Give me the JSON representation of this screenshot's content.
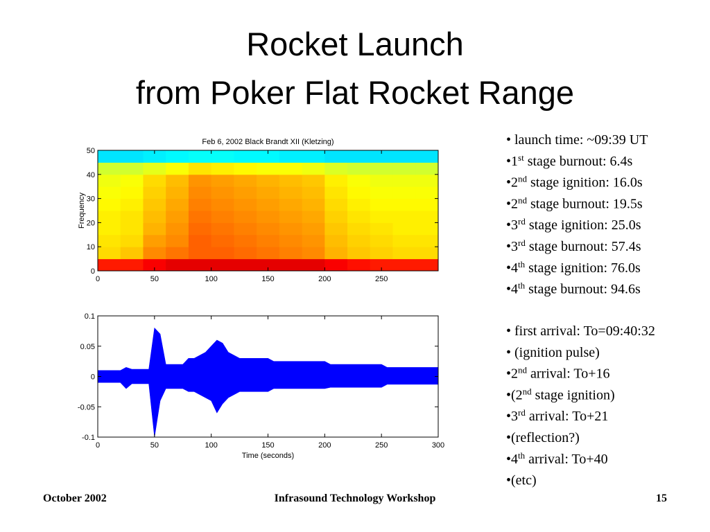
{
  "title_lines": [
    "Rocket Launch",
    "from Poker Flat Rocket Range"
  ],
  "bullets_1": [
    [
      "• launch time: ~09:39 UT"
    ],
    [
      "•1",
      "st",
      " stage burnout: 6.4s"
    ],
    [
      "•2",
      "nd",
      " stage ignition: 16.0s"
    ],
    [
      "•2",
      "nd",
      " stage burnout: 19.5s"
    ],
    [
      "•3",
      "rd",
      " stage ignition: 25.0s"
    ],
    [
      "•3",
      "rd",
      " stage burnout: 57.4s"
    ],
    [
      "•4",
      "th",
      " stage ignition: 76.0s"
    ],
    [
      "•4",
      "th",
      " stage burnout: 94.6s"
    ]
  ],
  "bullets_2": [
    [
      "• first arrival: To=09:40:32"
    ],
    [
      "• (ignition pulse)"
    ],
    [
      "•2",
      "nd",
      " arrival: To+16"
    ],
    [
      "•(2",
      "nd",
      " stage ignition)"
    ],
    [
      "•3",
      "rd",
      " arrival: To+21"
    ],
    [
      "•(reflection?)"
    ],
    [
      "•4",
      "th",
      " arrival: To+40"
    ],
    [
      "•(etc)"
    ]
  ],
  "footer": {
    "left": "October 2002",
    "center": "Infrasound Technology Workshop",
    "right": "15"
  },
  "chart_data": [
    {
      "type": "heatmap",
      "title": "Feb 6, 2002 Black Brandt XII (Kletzing)",
      "y_label": "Frequency",
      "xlim": [
        0,
        300
      ],
      "xticks": [
        0,
        50,
        100,
        150,
        200,
        250
      ],
      "ylim": [
        0,
        50
      ],
      "yticks": [
        0,
        10,
        20,
        30,
        40,
        50
      ],
      "x_bins": [
        0,
        20,
        40,
        60,
        80,
        100,
        120,
        140,
        160,
        180,
        200,
        220,
        240,
        260,
        280,
        300
      ],
      "y_bins": [
        0,
        5,
        10,
        15,
        20,
        25,
        30,
        35,
        40,
        45,
        50
      ],
      "z": [
        [
          0.85,
          0.85,
          0.88,
          0.9,
          0.9,
          0.9,
          0.9,
          0.9,
          0.9,
          0.9,
          0.88,
          0.86,
          0.85,
          0.85,
          0.85
        ],
        [
          0.66,
          0.68,
          0.74,
          0.76,
          0.78,
          0.78,
          0.77,
          0.76,
          0.75,
          0.74,
          0.7,
          0.68,
          0.67,
          0.66,
          0.66
        ],
        [
          0.65,
          0.66,
          0.72,
          0.74,
          0.78,
          0.77,
          0.76,
          0.75,
          0.74,
          0.73,
          0.69,
          0.67,
          0.66,
          0.65,
          0.65
        ],
        [
          0.64,
          0.65,
          0.7,
          0.73,
          0.77,
          0.76,
          0.75,
          0.74,
          0.73,
          0.72,
          0.68,
          0.66,
          0.65,
          0.64,
          0.64
        ],
        [
          0.64,
          0.65,
          0.69,
          0.72,
          0.76,
          0.75,
          0.74,
          0.73,
          0.72,
          0.71,
          0.67,
          0.65,
          0.64,
          0.64,
          0.64
        ],
        [
          0.63,
          0.64,
          0.68,
          0.71,
          0.75,
          0.74,
          0.73,
          0.72,
          0.71,
          0.7,
          0.66,
          0.64,
          0.63,
          0.63,
          0.63
        ],
        [
          0.62,
          0.63,
          0.67,
          0.7,
          0.74,
          0.73,
          0.72,
          0.71,
          0.7,
          0.69,
          0.65,
          0.63,
          0.62,
          0.62,
          0.62
        ],
        [
          0.61,
          0.62,
          0.66,
          0.69,
          0.73,
          0.72,
          0.71,
          0.7,
          0.69,
          0.68,
          0.64,
          0.62,
          0.61,
          0.61,
          0.61
        ],
        [
          0.58,
          0.58,
          0.6,
          0.62,
          0.65,
          0.64,
          0.63,
          0.62,
          0.62,
          0.61,
          0.59,
          0.58,
          0.58,
          0.58,
          0.58
        ],
        [
          0.35,
          0.35,
          0.36,
          0.37,
          0.38,
          0.38,
          0.37,
          0.37,
          0.36,
          0.36,
          0.35,
          0.35,
          0.35,
          0.35,
          0.35
        ]
      ]
    },
    {
      "type": "envelope",
      "x_label": "Time (seconds)",
      "color": "#0000ff",
      "xlim": [
        0,
        300
      ],
      "xticks": [
        0,
        50,
        100,
        150,
        200,
        250,
        300
      ],
      "ylim": [
        -0.1,
        0.1
      ],
      "yticks": [
        0.1,
        0.05,
        0,
        -0.05,
        -0.1
      ],
      "x": [
        0,
        5,
        10,
        15,
        20,
        25,
        30,
        35,
        40,
        45,
        50,
        55,
        60,
        65,
        70,
        75,
        80,
        85,
        90,
        95,
        100,
        105,
        110,
        115,
        120,
        125,
        130,
        135,
        140,
        145,
        150,
        155,
        160,
        165,
        170,
        175,
        180,
        185,
        190,
        195,
        200,
        205,
        210,
        215,
        220,
        225,
        230,
        235,
        240,
        245,
        250,
        255,
        260,
        265,
        270,
        275,
        280,
        285,
        290,
        295,
        300
      ],
      "high": [
        0.01,
        0.01,
        0.01,
        0.01,
        0.01,
        0.015,
        0.012,
        0.012,
        0.012,
        0.012,
        0.08,
        0.07,
        0.02,
        0.02,
        0.02,
        0.02,
        0.03,
        0.03,
        0.035,
        0.04,
        0.05,
        0.06,
        0.055,
        0.04,
        0.035,
        0.03,
        0.03,
        0.03,
        0.03,
        0.03,
        0.03,
        0.025,
        0.025,
        0.025,
        0.025,
        0.025,
        0.025,
        0.025,
        0.025,
        0.025,
        0.025,
        0.02,
        0.02,
        0.02,
        0.02,
        0.02,
        0.02,
        0.02,
        0.02,
        0.02,
        0.02,
        0.015,
        0.015,
        0.015,
        0.015,
        0.015,
        0.015,
        0.015,
        0.015,
        0.015,
        0.015
      ],
      "low": [
        -0.01,
        -0.01,
        -0.01,
        -0.01,
        -0.01,
        -0.02,
        -0.012,
        -0.012,
        -0.012,
        -0.012,
        -0.1,
        -0.04,
        -0.02,
        -0.02,
        -0.02,
        -0.02,
        -0.025,
        -0.025,
        -0.03,
        -0.035,
        -0.04,
        -0.06,
        -0.045,
        -0.035,
        -0.03,
        -0.025,
        -0.025,
        -0.025,
        -0.025,
        -0.025,
        -0.025,
        -0.02,
        -0.02,
        -0.02,
        -0.02,
        -0.02,
        -0.02,
        -0.02,
        -0.02,
        -0.02,
        -0.02,
        -0.018,
        -0.018,
        -0.018,
        -0.018,
        -0.018,
        -0.018,
        -0.018,
        -0.018,
        -0.018,
        -0.018,
        -0.013,
        -0.013,
        -0.013,
        -0.013,
        -0.013,
        -0.013,
        -0.013,
        -0.013,
        -0.013,
        -0.013
      ]
    }
  ]
}
